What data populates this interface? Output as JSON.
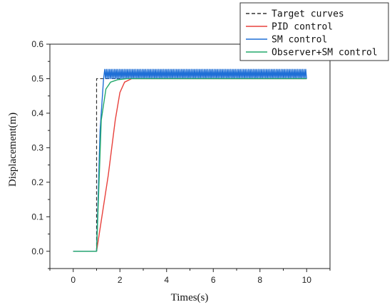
{
  "chart_data": {
    "type": "line",
    "xlabel": "Times(s)",
    "ylabel": "Displacement(m)",
    "xlim": [
      -1,
      11
    ],
    "ylim": [
      -0.05,
      0.6
    ],
    "xticks": [
      "0",
      "2",
      "4",
      "6",
      "8",
      "10"
    ],
    "yticks": [
      "0.0",
      "0.1",
      "0.2",
      "0.3",
      "0.4",
      "0.5",
      "0.6"
    ],
    "legend_position": "top-right-outside",
    "series": [
      {
        "name": "Target curves",
        "color": "#333333",
        "style": "dashed",
        "x": [
          0,
          1.0,
          1.0,
          10
        ],
        "y": [
          0,
          0,
          0.5,
          0.5
        ]
      },
      {
        "name": "PID control",
        "color": "#e8413c",
        "style": "solid",
        "x": [
          0,
          1.0,
          1.5,
          1.8,
          2.0,
          2.2,
          2.5,
          10
        ],
        "y": [
          0,
          0,
          0.22,
          0.38,
          0.46,
          0.49,
          0.5,
          0.5
        ]
      },
      {
        "name": "SM control",
        "color": "#1f6fd6",
        "style": "solid",
        "oscillation": {
          "start": 1.35,
          "end": 10,
          "period": 0.07,
          "low": 0.5,
          "high": 0.527
        },
        "x": [
          0,
          1.0,
          1.15,
          1.3
        ],
        "y": [
          0,
          0,
          0.35,
          0.5
        ]
      },
      {
        "name": "Observer+SM control",
        "color": "#22a86b",
        "style": "solid",
        "x": [
          0,
          1.0,
          1.2,
          1.4,
          1.6,
          1.9,
          2.3,
          10
        ],
        "y": [
          0,
          0,
          0.38,
          0.47,
          0.49,
          0.497,
          0.5,
          0.5
        ]
      }
    ]
  }
}
